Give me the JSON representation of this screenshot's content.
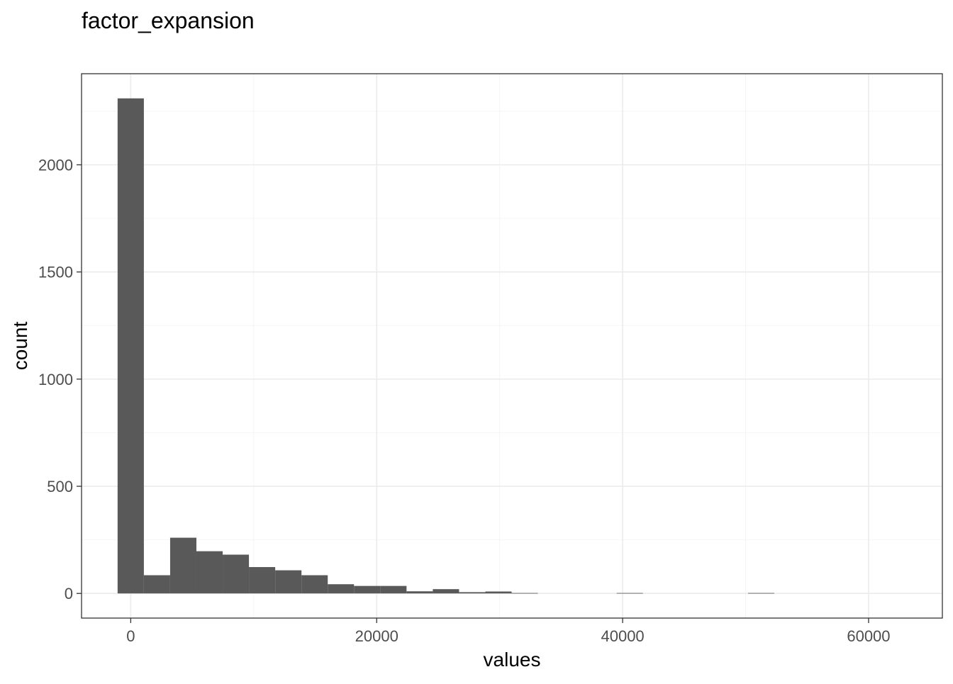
{
  "chart_data": {
    "type": "bar",
    "title": "factor_expansion",
    "xlabel": "values",
    "ylabel": "count",
    "xlim": [
      -4000,
      66000
    ],
    "ylim": [
      -115,
      2425
    ],
    "x_ticks": [
      0,
      20000,
      40000,
      60000
    ],
    "x_tick_labels": [
      "0",
      "20000",
      "40000",
      "60000"
    ],
    "y_ticks": [
      0,
      500,
      1000,
      1500,
      2000
    ],
    "y_tick_labels": [
      "0",
      "500",
      "1000",
      "1500",
      "2000"
    ],
    "grid": true,
    "legend": "none",
    "bin_width": 2136,
    "bins": [
      {
        "x0": -1068,
        "x1": 1068,
        "count": 2310
      },
      {
        "x0": 1068,
        "x1": 3204,
        "count": 85
      },
      {
        "x0": 3204,
        "x1": 5340,
        "count": 260
      },
      {
        "x0": 5340,
        "x1": 7476,
        "count": 197
      },
      {
        "x0": 7476,
        "x1": 9612,
        "count": 181
      },
      {
        "x0": 9612,
        "x1": 11748,
        "count": 123
      },
      {
        "x0": 11748,
        "x1": 13884,
        "count": 108
      },
      {
        "x0": 13884,
        "x1": 16020,
        "count": 85
      },
      {
        "x0": 16020,
        "x1": 18156,
        "count": 43
      },
      {
        "x0": 18156,
        "x1": 20292,
        "count": 35
      },
      {
        "x0": 20292,
        "x1": 22428,
        "count": 35
      },
      {
        "x0": 22428,
        "x1": 24564,
        "count": 10
      },
      {
        "x0": 24564,
        "x1": 26700,
        "count": 20
      },
      {
        "x0": 26700,
        "x1": 28836,
        "count": 6
      },
      {
        "x0": 28836,
        "x1": 30972,
        "count": 9
      },
      {
        "x0": 30972,
        "x1": 33108,
        "count": 2
      },
      {
        "x0": 39516,
        "x1": 41652,
        "count": 2
      },
      {
        "x0": 50196,
        "x1": 52332,
        "count": 2
      }
    ],
    "colors": {
      "bar": "#595959",
      "panel_border": "#333333",
      "grid_major": "#ebebeb",
      "grid_minor": "#f5f5f5",
      "tick_label": "#4d4d4d",
      "tick_mark": "#333333",
      "background": "#ffffff"
    }
  }
}
